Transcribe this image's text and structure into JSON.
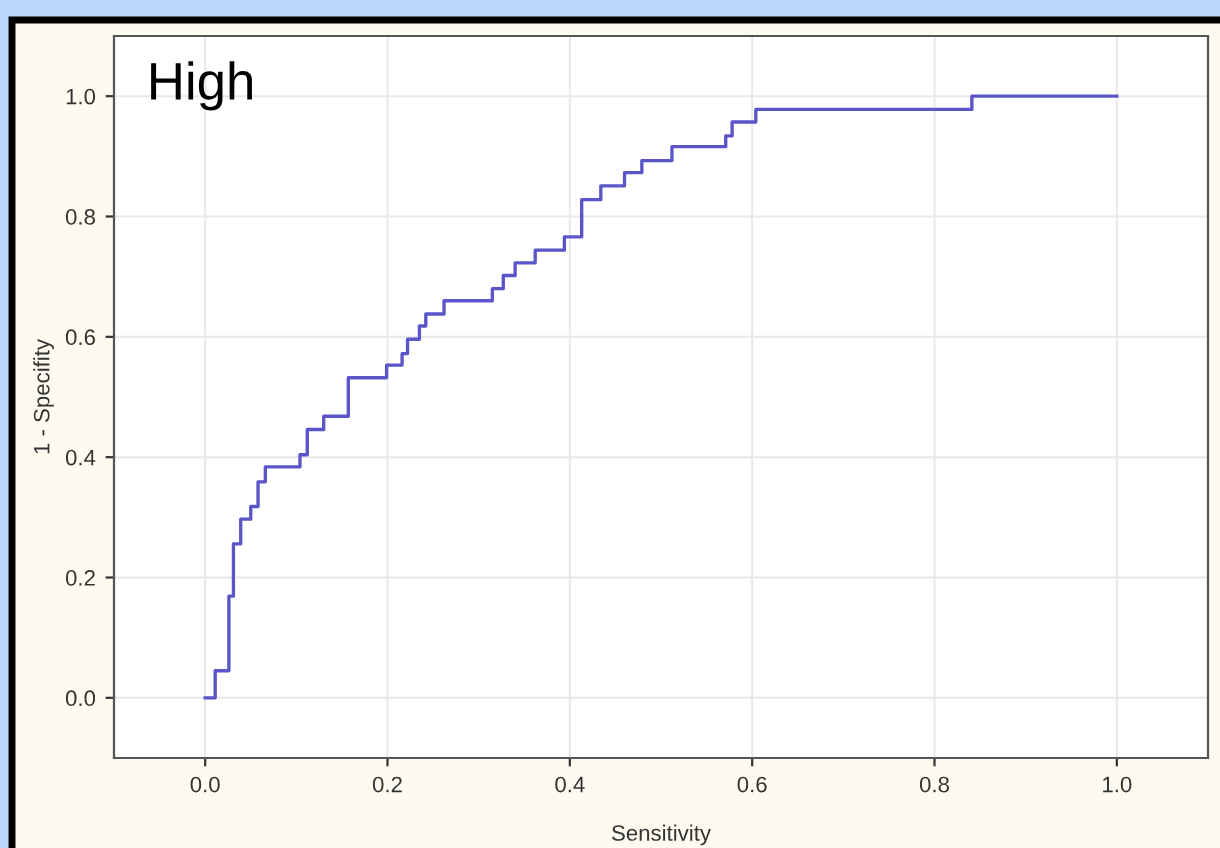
{
  "chart_data": {
    "type": "step",
    "xlabel": "Sensitivity",
    "ylabel": "1 - Specifity",
    "annotations": [
      "High"
    ],
    "x": [
      0.0,
      0.011,
      0.026,
      0.031,
      0.039,
      0.05,
      0.058,
      0.066,
      0.104,
      0.112,
      0.13,
      0.157,
      0.199,
      0.216,
      0.222,
      0.235,
      0.242,
      0.262,
      0.315,
      0.327,
      0.34,
      0.362,
      0.394,
      0.413,
      0.434,
      0.46,
      0.479,
      0.512,
      0.571,
      0.578,
      0.604,
      0.841,
      1.0
    ],
    "series": [
      {
        "color": "#5a55c8",
        "values": [
          0.0,
          0.045,
          0.169,
          0.256,
          0.297,
          0.318,
          0.359,
          0.384,
          0.404,
          0.446,
          0.468,
          0.532,
          0.553,
          0.572,
          0.596,
          0.618,
          0.638,
          0.66,
          0.68,
          0.702,
          0.723,
          0.744,
          0.766,
          0.828,
          0.851,
          0.873,
          0.893,
          0.916,
          0.934,
          0.957,
          0.978,
          1.0,
          1.0
        ]
      }
    ],
    "xlim": [
      -0.1,
      1.1
    ],
    "ylim": [
      -0.1,
      1.1
    ],
    "xticks": [
      {
        "value": 0,
        "label": "0.0"
      },
      0.2,
      0.4,
      0.6,
      0.8,
      {
        "value": 1,
        "label": "1.0"
      }
    ],
    "yticks": [
      {
        "value": 0,
        "label": "0.0"
      },
      0.2,
      0.4,
      0.6,
      0.8,
      {
        "value": 1,
        "label": "1.0"
      }
    ],
    "grid": true,
    "legend": false
  }
}
